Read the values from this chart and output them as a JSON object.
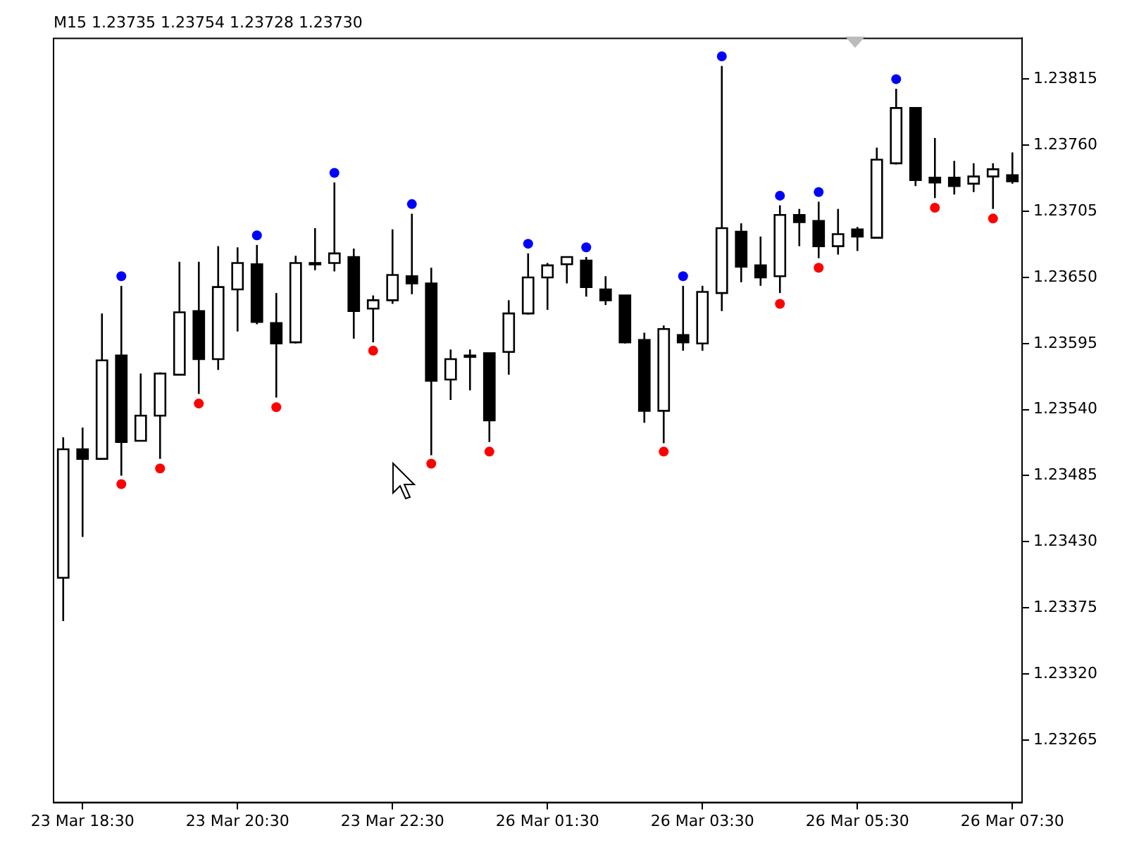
{
  "chart_data": {
    "type": "candlestick",
    "title": "M15 1.23735 1.23754 1.23728 1.23730",
    "categories": [
      null,
      "23 Mar 18:30",
      null,
      null,
      null,
      null,
      null,
      null,
      null,
      "23 Mar 20:30",
      null,
      null,
      null,
      null,
      null,
      null,
      null,
      "23 Mar 22:30",
      null,
      null,
      null,
      null,
      null,
      null,
      null,
      "26 Mar 01:30",
      null,
      null,
      null,
      null,
      null,
      null,
      null,
      "26 Mar 03:30",
      null,
      null,
      null,
      null,
      null,
      null,
      null,
      "26 Mar 05:30",
      null,
      null,
      null,
      null,
      null,
      null,
      null,
      "26 Mar 07:30"
    ],
    "ohlc": [
      [
        1.234,
        1.23517,
        1.23364,
        1.23507
      ],
      [
        1.23507,
        1.23525,
        1.23434,
        1.23499
      ],
      [
        1.23499,
        1.2362,
        1.23499,
        1.23581
      ],
      [
        1.23585,
        1.23643,
        1.23485,
        1.23513
      ],
      [
        1.23514,
        1.2357,
        1.23514,
        1.23535
      ],
      [
        1.23535,
        1.23571,
        1.23499,
        1.2357
      ],
      [
        1.23569,
        1.23663,
        1.23569,
        1.23621
      ],
      [
        1.23622,
        1.23663,
        1.23553,
        1.23582
      ],
      [
        1.23582,
        1.23676,
        1.23573,
        1.23642
      ],
      [
        1.2364,
        1.23675,
        1.23605,
        1.23662
      ],
      [
        1.23661,
        1.23677,
        1.23611,
        1.23613
      ],
      [
        1.23612,
        1.23637,
        1.2355,
        1.23595
      ],
      [
        1.23596,
        1.23668,
        1.23595,
        1.23662
      ],
      [
        1.23662,
        1.23691,
        1.23656,
        1.23662
      ],
      [
        1.23662,
        1.23729,
        1.23655,
        1.2367
      ],
      [
        1.23667,
        1.23674,
        1.23599,
        1.23622
      ],
      [
        1.23624,
        1.23635,
        1.23596,
        1.23631
      ],
      [
        1.23631,
        1.2369,
        1.23628,
        1.23652
      ],
      [
        1.23651,
        1.23703,
        1.23636,
        1.23645
      ],
      [
        1.23645,
        1.23658,
        1.23502,
        1.23564
      ],
      [
        1.23565,
        1.2359,
        1.23548,
        1.23582
      ],
      [
        1.23585,
        1.2359,
        1.23556,
        1.23585
      ],
      [
        1.23587,
        1.23587,
        1.23513,
        1.23531
      ],
      [
        1.23588,
        1.23631,
        1.23569,
        1.2362
      ],
      [
        1.2362,
        1.2367,
        1.23619,
        1.2365
      ],
      [
        1.2365,
        1.23662,
        1.23623,
        1.2366
      ],
      [
        1.23661,
        1.23667,
        1.23645,
        1.23667
      ],
      [
        1.23664,
        1.23667,
        1.23634,
        1.23642
      ],
      [
        1.2364,
        1.23651,
        1.23627,
        1.23631
      ],
      [
        1.23635,
        1.23635,
        1.23595,
        1.23596
      ],
      [
        1.23598,
        1.23604,
        1.23529,
        1.23539
      ],
      [
        1.23539,
        1.2361,
        1.23512,
        1.23607
      ],
      [
        1.23602,
        1.23643,
        1.23589,
        1.23596
      ],
      [
        1.23595,
        1.23643,
        1.23589,
        1.23638
      ],
      [
        1.23637,
        1.23826,
        1.23622,
        1.23691
      ],
      [
        1.23688,
        1.23695,
        1.23646,
        1.23659
      ],
      [
        1.2366,
        1.23684,
        1.23643,
        1.2365
      ],
      [
        1.23651,
        1.2371,
        1.23637,
        1.23702
      ],
      [
        1.23702,
        1.23707,
        1.23676,
        1.23696
      ],
      [
        1.23697,
        1.23713,
        1.23666,
        1.23676
      ],
      [
        1.23676,
        1.23707,
        1.23669,
        1.23686
      ],
      [
        1.2369,
        1.23692,
        1.23672,
        1.23684
      ],
      [
        1.23683,
        1.23758,
        1.23683,
        1.23748
      ],
      [
        1.23745,
        1.23807,
        1.23744,
        1.23791
      ],
      [
        1.23791,
        1.23791,
        1.23726,
        1.23731
      ],
      [
        1.23733,
        1.23766,
        1.23716,
        1.23729
      ],
      [
        1.23733,
        1.23747,
        1.23719,
        1.23726
      ],
      [
        1.23728,
        1.23745,
        1.23721,
        1.23734
      ],
      [
        1.23734,
        1.23745,
        1.23707,
        1.2374
      ],
      [
        1.23735,
        1.23754,
        1.23728,
        1.2373
      ]
    ],
    "series": [
      {
        "type": "scatter",
        "color": "#0000ff",
        "values": [
          null,
          null,
          null,
          1.23651,
          null,
          null,
          null,
          null,
          null,
          null,
          1.23685,
          null,
          null,
          null,
          1.23737,
          null,
          null,
          null,
          1.23711,
          null,
          null,
          null,
          null,
          null,
          1.23678,
          null,
          null,
          1.23675,
          null,
          null,
          null,
          null,
          1.23651,
          null,
          1.23834,
          null,
          null,
          1.23718,
          null,
          1.23721,
          null,
          null,
          null,
          1.23815,
          null,
          null,
          null,
          null,
          null,
          null
        ]
      },
      {
        "type": "scatter",
        "color": "#ff0000",
        "values": [
          null,
          null,
          null,
          1.23478,
          null,
          1.23491,
          null,
          1.23545,
          null,
          null,
          null,
          1.23542,
          null,
          null,
          null,
          null,
          1.23589,
          null,
          null,
          1.23495,
          null,
          null,
          1.23505,
          null,
          null,
          null,
          null,
          null,
          null,
          null,
          null,
          1.23505,
          null,
          null,
          null,
          null,
          null,
          1.23628,
          null,
          1.23658,
          null,
          null,
          null,
          null,
          null,
          1.23708,
          null,
          null,
          1.23699,
          null
        ]
      }
    ],
    "ylim": [
      1.23213,
      1.23849
    ],
    "yticks": [
      1.23265,
      {
        "value": 1.2332,
        "label": "1.23320"
      },
      1.23375,
      {
        "value": 1.2343,
        "label": "1.23430"
      },
      1.23485,
      {
        "value": 1.2354,
        "label": "1.23540"
      },
      1.23595,
      {
        "value": 1.2365,
        "label": "1.23650"
      },
      1.23705,
      {
        "value": 1.2376,
        "label": "1.23760"
      },
      1.23815
    ],
    "grid": false,
    "legend": false,
    "marker": "circle"
  }
}
